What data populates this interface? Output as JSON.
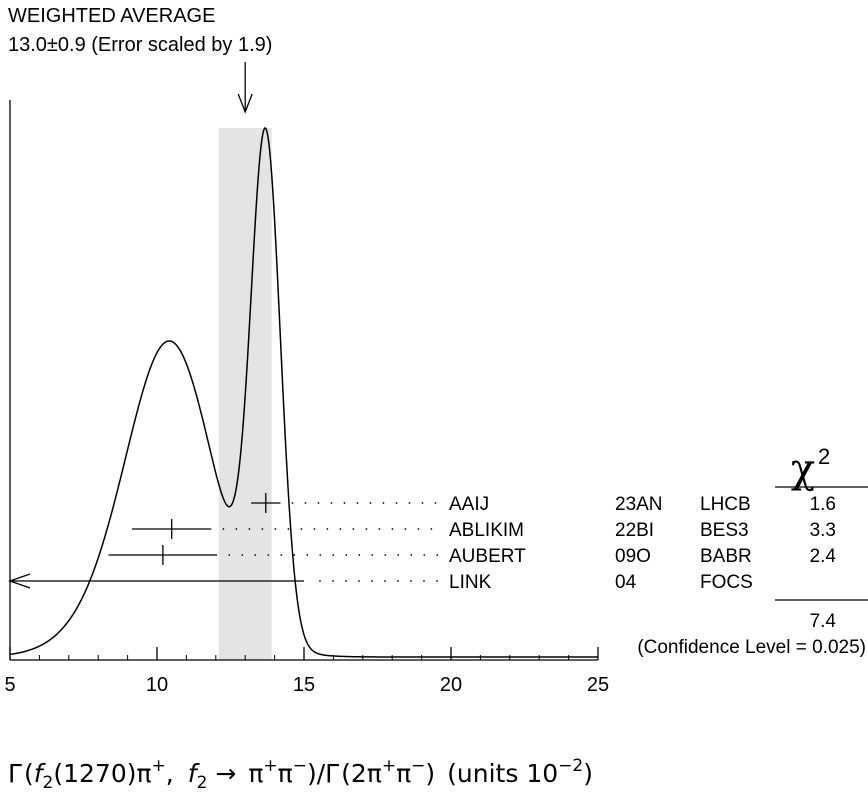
{
  "chart_data": {
    "type": "ideogram",
    "title": "WEIGHTED AVERAGE",
    "subtitle": "13.0±0.9 (Error scaled by 1.9)",
    "weighted_average": {
      "value": 13.0,
      "error": 0.9,
      "scale_factor": 1.9
    },
    "xlim": [
      5,
      25
    ],
    "x_ticks": [
      5,
      10,
      15,
      20,
      25
    ],
    "chi2_header": "χ",
    "chi2_header_sup": "2",
    "measurements": [
      {
        "name": "AAIJ",
        "year_code": "23AN",
        "experiment": "LHCB",
        "value": 13.7,
        "error": 0.5,
        "chi2": "1.6",
        "used": true
      },
      {
        "name": "ABLIKIM",
        "year_code": "22BI",
        "experiment": "BES3",
        "value": 10.5,
        "error": 1.35,
        "chi2": "3.3",
        "used": true
      },
      {
        "name": "AUBERT",
        "year_code": "09O",
        "experiment": "BABR",
        "value": 10.2,
        "error": 1.85,
        "chi2": "2.4",
        "used": true
      },
      {
        "name": "LINK",
        "year_code": "04",
        "experiment": "FOCS",
        "upper_limit": 15.0,
        "chi2": "",
        "used": false
      }
    ],
    "chi2_total": "7.4",
    "confidence_level": "(Confidence Level = 0.025)",
    "xlabel": {
      "gamma": "Γ",
      "f2": "f",
      "f2_sub": "2",
      "mass": "(1270)",
      "pi": "π",
      "sup_plus": "+",
      "sup_minus": "−",
      "arrow": "→",
      "two": "2",
      "slash": "/",
      "comma": ",",
      "units": "(units 10",
      "units_exp": "−2",
      "close": ")"
    }
  }
}
